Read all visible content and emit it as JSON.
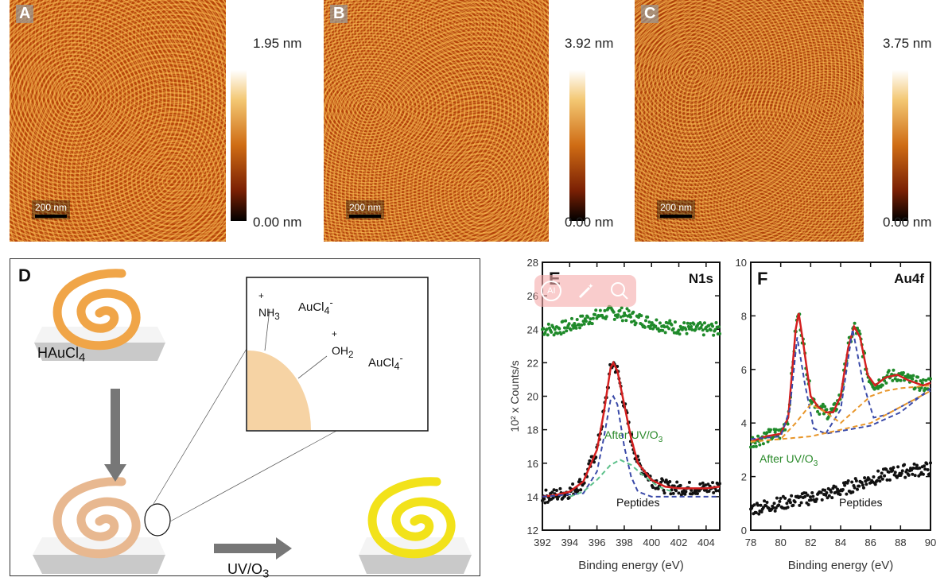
{
  "panels_afm": [
    {
      "label": "A",
      "scale_bar": "200 nm",
      "max": "1.95 nm",
      "min": "0.00 nm"
    },
    {
      "label": "B",
      "scale_bar": "200 nm",
      "max": "3.92 nm",
      "min": "0.00 nm"
    },
    {
      "label": "C",
      "scale_bar": "200 nm",
      "max": "3.75 nm",
      "min": "0.00 nm"
    }
  ],
  "panel_d": {
    "label": "D",
    "reagent": "HAuCl4",
    "reagent_sub": "4",
    "reagent_base": "HAuCl",
    "treatment_base": "UV/O",
    "treatment_sub": "3",
    "inset": {
      "group1_charge": "+",
      "group1_base": "NH",
      "group1_sub": "3",
      "anion1": "AuCl",
      "anion1_sub": "4",
      "anion1_charge": "-",
      "group2_charge": "+",
      "group2_base": "OH",
      "group2_sub": "2",
      "anion2": "AuCl",
      "anion2_sub": "4",
      "anion2_charge": "-"
    },
    "colors": {
      "peptide": "#f0a548",
      "gold_loaded": "#e8b890",
      "gold": "#f2e21a"
    }
  },
  "overlay_toolbar": {
    "buttons": [
      {
        "icon": "ai-icon",
        "label": "AI"
      },
      {
        "icon": "magic-wand-icon"
      },
      {
        "icon": "search-icon"
      }
    ]
  },
  "chart_data": [
    {
      "type": "scatter",
      "panel": "E",
      "title": "N1s",
      "xlabel": "Binding energy (eV)",
      "ylabel": "10² x Counts/s",
      "xlim": [
        392,
        405
      ],
      "ylim": [
        12,
        28
      ],
      "xticks": [
        392,
        394,
        396,
        398,
        400,
        402,
        404
      ],
      "yticks": [
        12,
        14,
        16,
        18,
        20,
        22,
        24,
        26,
        28
      ],
      "annotations": [
        {
          "text": "After UV/O",
          "sub": "3",
          "color": "#2a8a2a"
        },
        {
          "text": "Peptides",
          "color": "#111"
        }
      ],
      "series": [
        {
          "name": "After UV/O3",
          "kind": "points",
          "color": "#1f8a2a",
          "x": [
            392,
            393,
            394,
            395,
            396,
            397,
            398,
            399,
            400,
            401,
            402,
            403,
            404,
            405
          ],
          "y": [
            24,
            24,
            24.2,
            24.5,
            24.8,
            25,
            24.9,
            24.6,
            24.4,
            24.2,
            24.1,
            24,
            24,
            24
          ]
        },
        {
          "name": "Peptides",
          "kind": "points",
          "color": "#111",
          "x": [
            392,
            393,
            394,
            395,
            396,
            396.5,
            397,
            397.2,
            397.5,
            398,
            398.5,
            399,
            400,
            401,
            402,
            403,
            404,
            405
          ],
          "y": [
            14,
            14.1,
            14.3,
            14.9,
            16.8,
            19,
            21.7,
            22,
            21.5,
            19.5,
            17.5,
            16,
            15,
            14.6,
            14.5,
            14.5,
            14.5,
            14.6
          ]
        },
        {
          "kind": "fit",
          "color": "#d42020",
          "x": [
            392,
            393,
            394,
            395,
            396,
            396.5,
            397,
            397.2,
            397.5,
            398,
            398.5,
            399,
            400,
            401,
            402,
            403,
            404,
            405
          ],
          "y": [
            14,
            14.1,
            14.3,
            14.9,
            16.8,
            19,
            21.7,
            22,
            21.5,
            19.5,
            17.5,
            16,
            15,
            14.6,
            14.5,
            14.5,
            14.5,
            14.6
          ]
        },
        {
          "kind": "component",
          "color": "#3a4aa8",
          "x": [
            392,
            395,
            396,
            396.5,
            397,
            397.2,
            397.5,
            398,
            398.5,
            399,
            400,
            405
          ],
          "y": [
            14,
            14.2,
            15.5,
            17.5,
            19.8,
            20,
            19.5,
            17,
            15.2,
            14.3,
            14,
            14
          ]
        },
        {
          "kind": "component",
          "color": "#5cc08a",
          "x": [
            394,
            395,
            396,
            397,
            397.7,
            398.5,
            399.5,
            400.5,
            401.5
          ],
          "y": [
            14,
            14.3,
            15,
            15.9,
            16.2,
            15.9,
            15.2,
            14.6,
            14.3
          ]
        }
      ]
    },
    {
      "type": "scatter",
      "panel": "F",
      "title": "Au4f",
      "xlabel": "Binding energy (eV)",
      "ylabel": "",
      "xlim": [
        78,
        90
      ],
      "ylim": [
        0,
        10
      ],
      "xticks": [
        78,
        80,
        82,
        84,
        86,
        88,
        90
      ],
      "yticks": [
        0,
        2,
        4,
        6,
        8,
        10
      ],
      "annotations": [
        {
          "text": "After UV/O",
          "sub": "3",
          "color": "#2a8a2a"
        },
        {
          "text": "Peptides",
          "color": "#111"
        }
      ],
      "series": [
        {
          "name": "After UV/O3",
          "kind": "points",
          "color": "#1f8a2a",
          "x": [
            78,
            79,
            80,
            80.5,
            81,
            81.2,
            81.5,
            82,
            82.5,
            83,
            83.5,
            84,
            84.5,
            84.9,
            85.3,
            85.8,
            86.3,
            87,
            87.8,
            88.5,
            89.5,
            90
          ],
          "y": [
            3.3,
            3.5,
            3.6,
            4.2,
            7.5,
            8.1,
            7,
            5,
            4.6,
            4.4,
            4.4,
            5,
            6.8,
            7.6,
            7.2,
            5.8,
            5.4,
            5.7,
            5.8,
            5.6,
            5.4,
            5.5
          ]
        },
        {
          "name": "Peptides",
          "kind": "points",
          "color": "#111",
          "x": [
            78,
            80,
            82,
            84,
            86,
            88,
            90
          ],
          "y": [
            0.8,
            1.0,
            1.2,
            1.5,
            1.9,
            2.2,
            2.3
          ]
        },
        {
          "kind": "fit",
          "color": "#d42020",
          "x": [
            78,
            79,
            80,
            80.5,
            81,
            81.2,
            81.5,
            82,
            82.5,
            83,
            83.5,
            84,
            84.5,
            84.9,
            85.3,
            85.8,
            86.3,
            87,
            87.8,
            88.5,
            89.5,
            90
          ],
          "y": [
            3.3,
            3.5,
            3.6,
            4.2,
            7.5,
            8.1,
            7,
            5,
            4.6,
            4.4,
            4.4,
            5,
            6.8,
            7.6,
            7.2,
            5.8,
            5.4,
            5.7,
            5.8,
            5.6,
            5.4,
            5.5
          ]
        },
        {
          "kind": "component",
          "color": "#3a4aa8",
          "x": [
            78,
            80,
            80.6,
            81.1,
            81.6,
            82.2,
            83,
            86,
            88,
            90
          ],
          "y": [
            3.4,
            3.5,
            4.5,
            7.2,
            5.5,
            3.8,
            3.6,
            3.9,
            4.4,
            5.3
          ]
        },
        {
          "kind": "component",
          "color": "#3a4aa8",
          "x": [
            83,
            84,
            84.8,
            85.5,
            86.2,
            87,
            88,
            90
          ],
          "y": [
            3.6,
            4.5,
            7.5,
            5.5,
            4.2,
            4.3,
            4.6,
            5.2
          ]
        },
        {
          "kind": "component",
          "color": "#e8962a",
          "x": [
            78,
            80,
            81,
            82,
            83,
            84,
            85,
            86,
            87,
            88,
            90
          ],
          "y": [
            3.3,
            3.4,
            4,
            4.7,
            4.4,
            4,
            4.5,
            5,
            5.2,
            5.3,
            5.4
          ]
        },
        {
          "kind": "component",
          "color": "#e8962a",
          "x": [
            78,
            82,
            86,
            90
          ],
          "y": [
            3.3,
            3.5,
            4,
            5.2
          ]
        }
      ]
    }
  ]
}
